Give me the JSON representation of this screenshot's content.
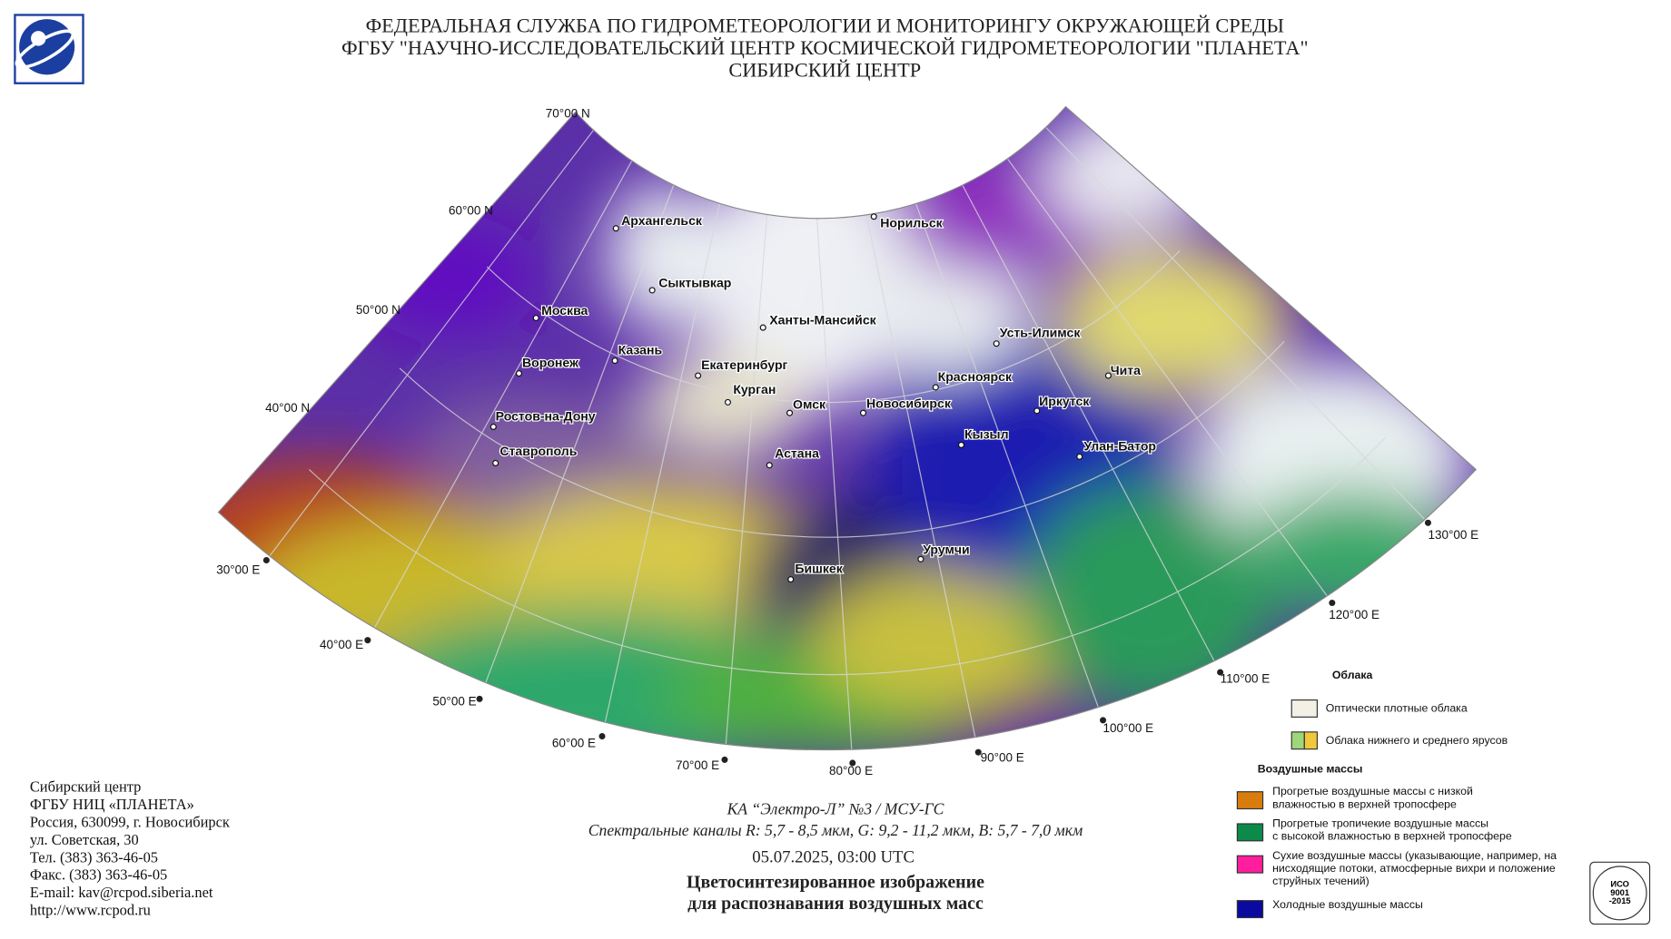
{
  "header": {
    "lines": [
      "ФЕДЕРАЛЬНАЯ СЛУЖБА ПО ГИДРОМЕТЕОРОЛОГИИ И МОНИТОРИНГУ ОКРУЖАЮЩЕЙ СРЕДЫ",
      "ФГБУ \"НАУЧНО-ИССЛЕДОВАТЕЛЬСКИЙ ЦЕНТР КОСМИЧЕСКОЙ ГИДРОМЕТЕОРОЛОГИИ \"ПЛАНЕТА\"",
      "СИБИРСКИЙ ЦЕНТР"
    ]
  },
  "map": {
    "latitude_labels": [
      "70°00 N",
      "60°00 N",
      "50°00 N",
      "40°00 N"
    ],
    "longitude_labels": [
      "30°00 E",
      "40°00 E",
      "50°00 E",
      "60°00 E",
      "70°00 E",
      "80°00 E",
      "90°00 E",
      "100°00 E",
      "110°00 E",
      "120°00 E",
      "130°00 E"
    ],
    "cities": [
      "Архангельск",
      "Норильск",
      "Сыктывкар",
      "Москва",
      "Ханты-Мансийск",
      "Усть-Илимск",
      "Казань",
      "Воронеж",
      "Екатеринбург",
      "Красноярск",
      "Чита",
      "Курган",
      "Омск",
      "Новосибирск",
      "Иркутск",
      "Ростов-на-Дону",
      "Кызыл",
      "Улан-Батор",
      "Ставрополь",
      "Астана",
      "Урумчи",
      "Бишкек"
    ]
  },
  "legend": {
    "clouds_title": "Облака",
    "clouds": [
      {
        "label": "Оптически плотные облака",
        "color": "#f3f1e6"
      },
      {
        "label": "Облака нижнего и среднего ярусов",
        "color": "#9fd67a",
        "color2": "#f0c93a"
      }
    ],
    "air_masses_title": "Воздушные массы",
    "air_masses": [
      {
        "label": [
          "Прогретые воздушные массы с низкой",
          "влажностью в верхней тропосфере"
        ],
        "color": "#d97c0e"
      },
      {
        "label": [
          "Прогретые тропичекие воздушные массы",
          "с высокой влажностью в верхней тропосфере"
        ],
        "color": "#0b8a4a"
      },
      {
        "label": [
          "Сухие воздушные массы (указывающие, например, на",
          "нисходящие потоки, атмосферные вихри и положение",
          "струйных течений)"
        ],
        "color": "#ff1f9e"
      },
      {
        "label": [
          "Холодные воздушные массы"
        ],
        "color": "#0a0aa0"
      }
    ]
  },
  "contact": {
    "lines": [
      "Сибирский центр",
      "ФГБУ НИЦ «ПЛАНЕТА»",
      "Россия, 630099, г. Новосибирск",
      "ул. Советская, 30",
      "Тел. (383) 363-46-05",
      "Факс. (383) 363-46-05",
      "E-mail: kav@rcpod.siberia.net",
      "http://www.rcpod.ru"
    ]
  },
  "caption": {
    "satellite": "КА “Электро-Л” №3 / МСУ-ГС",
    "channels": "Спектральные каналы R: 5,7 - 8,5 мкм, G: 9,2 - 11,2 мкм, B: 5,7 - 7,0 мкм",
    "datetime": "05.07.2025, 03:00 UTC",
    "title_lines": [
      "Цветосинтезированное изображение",
      "для распознавания воздушных масс"
    ]
  },
  "certification": {
    "lines": [
      "ИСО",
      "9001",
      "-2015"
    ]
  }
}
